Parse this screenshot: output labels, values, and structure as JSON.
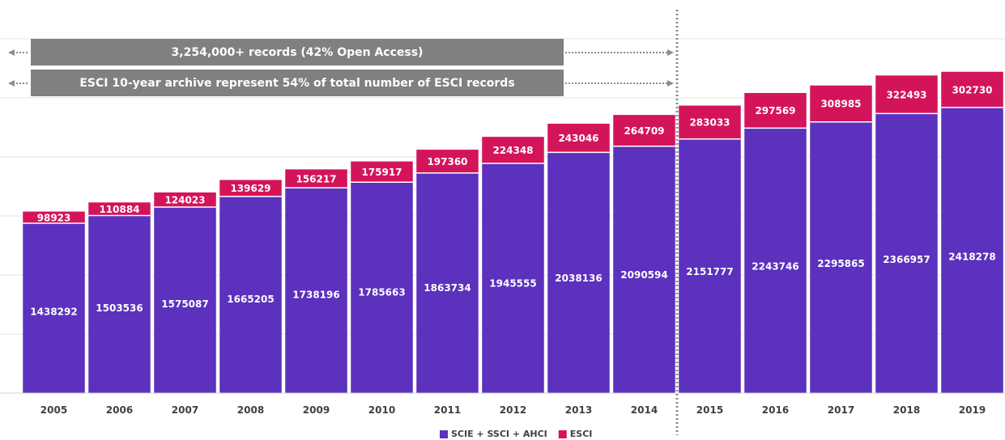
{
  "chart_data": {
    "type": "bar",
    "stacked": true,
    "categories": [
      "2005",
      "2006",
      "2007",
      "2008",
      "2009",
      "2010",
      "2011",
      "2012",
      "2013",
      "2014",
      "2015",
      "2016",
      "2017",
      "2018",
      "2019"
    ],
    "series": [
      {
        "name": "SCIE + SSCI + AHCI",
        "color": "#5b31be",
        "values": [
          1438292,
          1503536,
          1575087,
          1665205,
          1738196,
          1785663,
          1863734,
          1945555,
          2038136,
          2090594,
          2151777,
          2243746,
          2295865,
          2366957,
          2418278
        ]
      },
      {
        "name": "ESCI",
        "color": "#d4145a",
        "values": [
          98923,
          110884,
          124023,
          139629,
          156217,
          175917,
          197360,
          224348,
          243046,
          264709,
          283033,
          297569,
          308985,
          322493,
          302730
        ]
      }
    ],
    "ylim": [
      0,
      3000000
    ],
    "grid": true,
    "legend_position": "bottom-center",
    "divider_after_category": "2014",
    "annotations": [
      {
        "text": "3,254,000+ records (42% Open Access)",
        "span": [
          "2005",
          "2014"
        ]
      },
      {
        "text": "ESCI 10-year archive represent 54% of total number of ESCI records",
        "span": [
          "2005",
          "2014"
        ]
      }
    ]
  },
  "colors": {
    "primary": "#5b31be",
    "esci": "#d4145a",
    "banner": "#808080",
    "grid": "#e3e3e3",
    "divider": "#8c8c8c"
  }
}
